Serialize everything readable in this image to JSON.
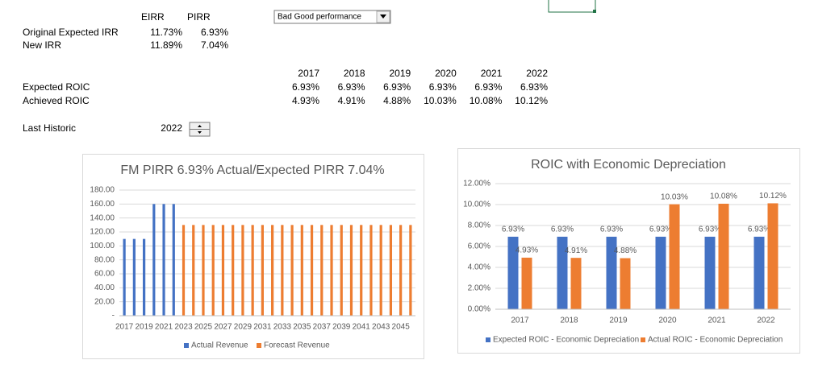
{
  "sheet": {
    "irr_headers": [
      "EIRR",
      "PIRR"
    ],
    "irr_rows": [
      [
        "Original Expected IRR",
        "11.73%",
        "6.93%"
      ],
      [
        "New IRR",
        "11.89%",
        "7.04%"
      ]
    ],
    "dropdown": "Bad Good performance",
    "years": [
      "2017",
      "2018",
      "2019",
      "2020",
      "2021",
      "2022"
    ],
    "roic_rows": [
      [
        "Expected ROIC",
        "6.93%",
        "6.93%",
        "6.93%",
        "6.93%",
        "6.93%",
        "6.93%"
      ],
      [
        "Achieved ROIC",
        "4.93%",
        "4.91%",
        "4.88%",
        "10.03%",
        "10.08%",
        "10.12%"
      ]
    ],
    "last_historic": [
      "Last Historic",
      "2022"
    ]
  },
  "chart_data": [
    {
      "type": "bar",
      "title": "FM PIRR 6.93% Actual/Expected PIRR 7.04%",
      "categories": [
        "2017",
        null,
        "2019",
        null,
        "2021",
        null,
        "2023",
        null,
        "2025",
        null,
        "2027",
        null,
        "2029",
        null,
        "2031",
        null,
        "2033",
        null,
        "2035",
        null,
        "2037",
        null,
        "2039",
        null,
        "2041",
        null,
        "2043",
        null,
        "2045",
        null
      ],
      "series": [
        {
          "name": "Actual Revenue",
          "color": "#4472c4",
          "values": [
            110,
            110,
            110,
            160,
            160,
            160,
            null,
            null,
            null,
            null,
            null,
            null,
            null,
            null,
            null,
            null,
            null,
            null,
            null,
            null,
            null,
            null,
            null,
            null,
            null,
            null,
            null,
            null,
            null,
            null
          ]
        },
        {
          "name": "Forecast Revenue",
          "color": "#ed7d31",
          "values": [
            null,
            null,
            null,
            null,
            null,
            null,
            130,
            130,
            130,
            130,
            130,
            130,
            130,
            130,
            130,
            130,
            130,
            130,
            130,
            130,
            130,
            130,
            130,
            130,
            130,
            130,
            130,
            130,
            130,
            130
          ]
        }
      ],
      "ylim": [
        0,
        180
      ],
      "yticks": [
        {
          "value": 0,
          "label": "-"
        },
        {
          "value": 20,
          "label": "20.00"
        },
        {
          "value": 40,
          "label": "40.00"
        },
        {
          "value": 60,
          "label": "60.00"
        },
        {
          "value": 80,
          "label": "80.00"
        },
        {
          "value": 100,
          "label": "100.00"
        },
        {
          "value": 120,
          "label": "120.00"
        },
        {
          "value": 140,
          "label": "140.00"
        },
        {
          "value": 160,
          "label": "160.00"
        },
        {
          "value": 180,
          "label": "180.00"
        }
      ],
      "grid": true,
      "legend": "bottom"
    },
    {
      "type": "bar",
      "title": "ROIC with Economic Depreciation",
      "categories": [
        "2017",
        "2018",
        "2019",
        "2020",
        "2021",
        "2022"
      ],
      "series": [
        {
          "name": "Expected ROIC - Economic Depreciation",
          "color": "#4472c4",
          "values": [
            6.93,
            6.93,
            6.93,
            6.93,
            6.93,
            6.93
          ],
          "value_labels": [
            "6.93%",
            "6.93%",
            "6.93%",
            "6.93%",
            "6.93%",
            "6.93%"
          ]
        },
        {
          "name": "Actual ROIC - Economic Depreciation",
          "color": "#ed7d31",
          "values": [
            4.93,
            4.91,
            4.88,
            10.03,
            10.08,
            10.12
          ],
          "value_labels": [
            "4.93%",
            "4.91%",
            "4.88%",
            "10.03%",
            "10.08%",
            "10.12%"
          ]
        }
      ],
      "ylim": [
        0,
        12
      ],
      "yticks": [
        {
          "value": 0,
          "label": "0.00%"
        },
        {
          "value": 2,
          "label": "2.00%"
        },
        {
          "value": 4,
          "label": "4.00%"
        },
        {
          "value": 6,
          "label": "6.00%"
        },
        {
          "value": 8,
          "label": "8.00%"
        },
        {
          "value": 10,
          "label": "10.00%"
        },
        {
          "value": 12,
          "label": "12.00%"
        }
      ],
      "grid": true,
      "legend": "bottom"
    }
  ]
}
